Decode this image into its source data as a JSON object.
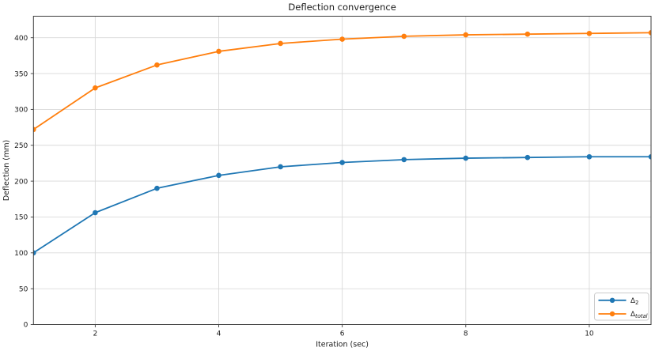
{
  "chart_data": {
    "type": "line",
    "title": "Deflection convergence",
    "xlabel": "Iteration (sec)",
    "ylabel": "Deflection (mm)",
    "x": [
      1,
      2,
      3,
      4,
      5,
      6,
      7,
      8,
      9,
      10,
      11
    ],
    "series": [
      {
        "name": "Δ2",
        "label_symbol": "Δ",
        "label_subscript": "2",
        "color": "#1f77b4",
        "marker": "o",
        "values": [
          100,
          156,
          190,
          208,
          220,
          226,
          230,
          232,
          233,
          234,
          234
        ]
      },
      {
        "name": "Δtotal",
        "label_symbol": "Δ",
        "label_subscript": "total",
        "color": "#ff7f0e",
        "marker": "o",
        "values": [
          272,
          330,
          362,
          381,
          392,
          398,
          402,
          404,
          405,
          406,
          407
        ]
      }
    ],
    "xlim": [
      1,
      11
    ],
    "ylim": [
      0,
      430
    ],
    "xticks": [
      2,
      4,
      6,
      8,
      10
    ],
    "yticks": [
      0,
      50,
      100,
      150,
      200,
      250,
      300,
      350,
      400
    ],
    "grid": true,
    "legend_position": "lower right"
  },
  "colors": {
    "background": "#ffffff",
    "grid": "#d9d9d9",
    "spine": "#3c3c3c",
    "tick": "#3c3c3c",
    "text": "#1a1a1a",
    "legend_border": "#cccccc"
  }
}
